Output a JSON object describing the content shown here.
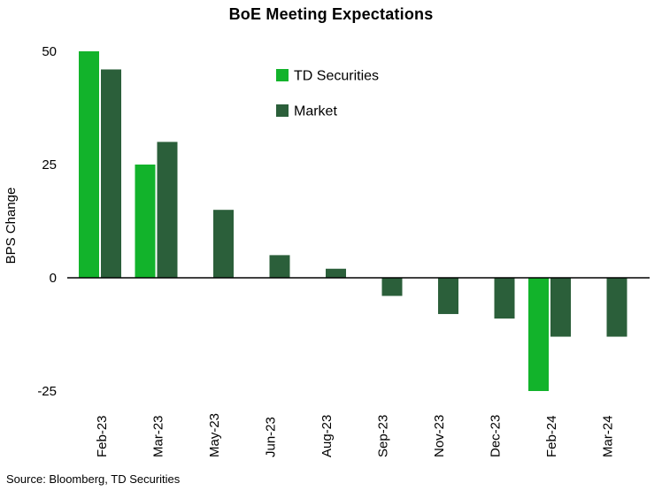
{
  "title": "BoE Meeting Expectations",
  "source": "Source: Bloomberg, TD Securities",
  "chart_data": {
    "type": "bar",
    "title": "BoE Meeting Expectations",
    "xlabel": "",
    "ylabel": "BPS Change",
    "categories": [
      "Feb-23",
      "Mar-23",
      "May-23",
      "Jun-23",
      "Aug-23",
      "Sep-23",
      "Nov-23",
      "Dec-23",
      "Feb-24",
      "Mar-24"
    ],
    "series": [
      {
        "name": "TD Securities",
        "color": "#12b32b",
        "values": [
          50,
          25,
          0,
          0,
          0,
          0,
          0,
          0,
          -25,
          0
        ]
      },
      {
        "name": "Market",
        "color": "#2b5f3a",
        "values": [
          46,
          30,
          15,
          5,
          2,
          -4,
          -8,
          -9,
          -13,
          -13
        ]
      }
    ],
    "yticks": [
      50,
      25,
      0,
      -25
    ],
    "ylim": [
      -30,
      55
    ],
    "grid": false,
    "legend_position": "upper-center-inside",
    "bar_orientation": "vertical"
  }
}
